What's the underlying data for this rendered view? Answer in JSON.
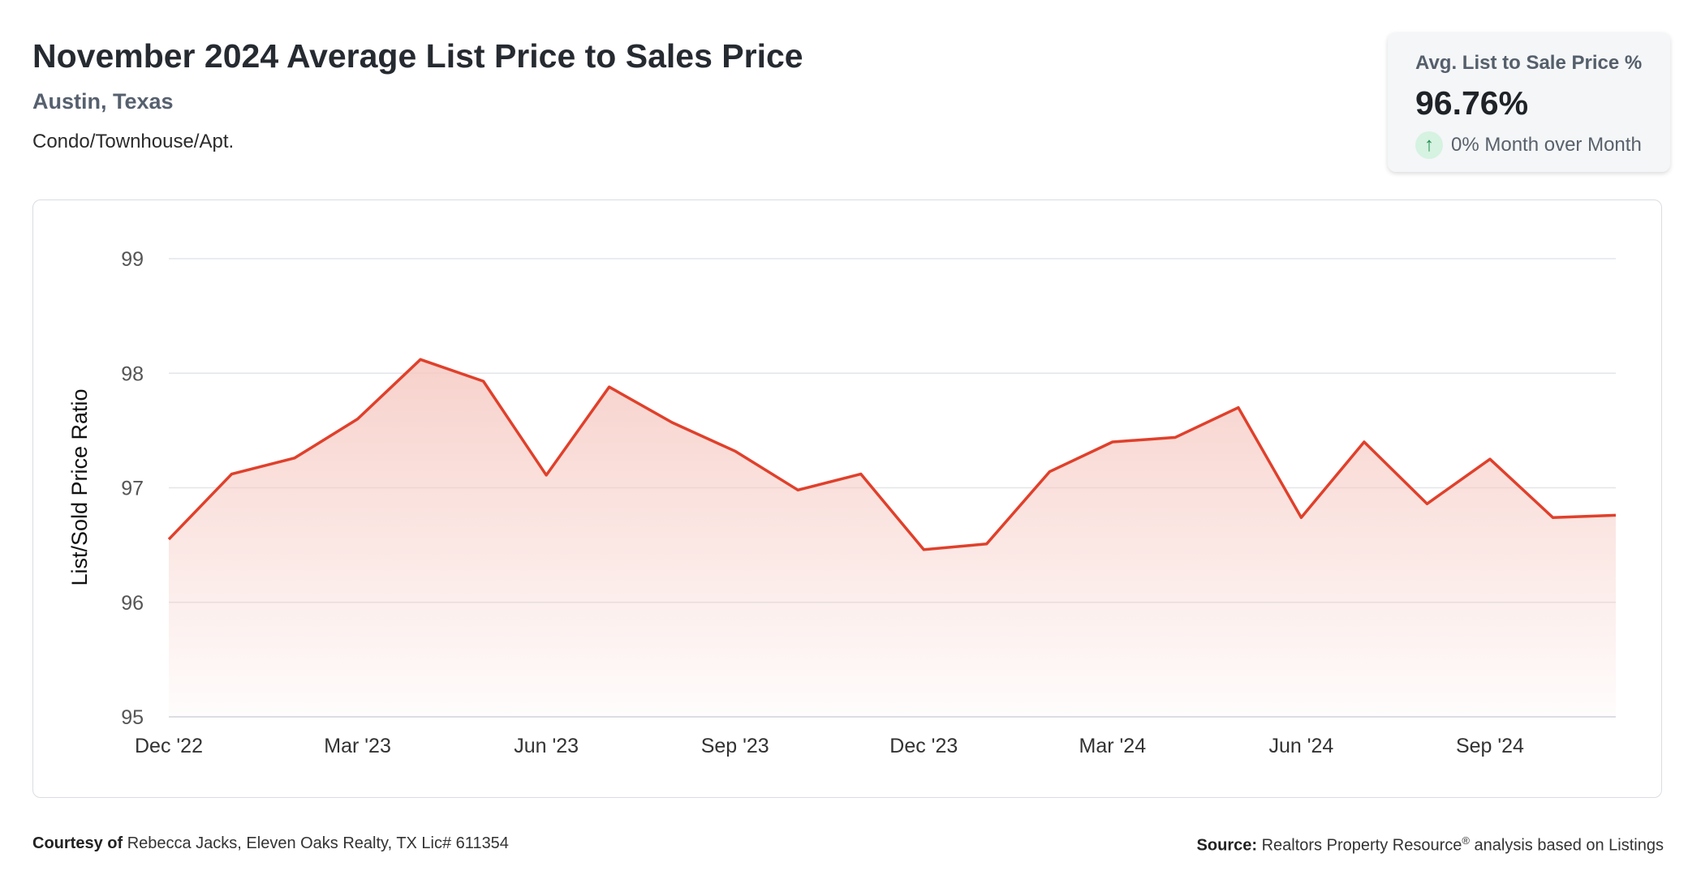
{
  "header": {
    "title": "November 2024 Average List Price to Sales Price",
    "location": "Austin, Texas",
    "property_type": "Condo/Townhouse/Apt."
  },
  "kpi": {
    "label": "Avg. List to Sale Price %",
    "value": "96.76%",
    "change": "0% Month over Month",
    "change_icon": "arrow-up-icon"
  },
  "footer": {
    "courtesy_label": "Courtesy of",
    "courtesy_text": "Rebecca Jacks, Eleven Oaks Realty, TX Lic# 611354",
    "source_label": "Source:",
    "source_text_before": "Realtors Property Resource",
    "source_sup": "®",
    "source_text_after": " analysis based on Listings"
  },
  "colors": {
    "line": "#e0402b",
    "fill_top": "#f6c9c2",
    "grid": "#e3e5e8",
    "accent_up": "#1f8f4e"
  },
  "chart_data": {
    "type": "area",
    "ylabel": "List/Sold Price Ratio",
    "xlabel": "",
    "ylim": [
      95,
      99
    ],
    "yticks": [
      95,
      96,
      97,
      98,
      99
    ],
    "grid": true,
    "x": [
      "Dec '22",
      "Jan '23",
      "Feb '23",
      "Mar '23",
      "Apr '23",
      "May '23",
      "Jun '23",
      "Jul '23",
      "Aug '23",
      "Sep '23",
      "Oct '23",
      "Nov '23",
      "Dec '23",
      "Jan '24",
      "Feb '24",
      "Mar '24",
      "Apr '24",
      "May '24",
      "Jun '24",
      "Jul '24",
      "Aug '24",
      "Sep '24",
      "Oct '24",
      "Nov '24"
    ],
    "xtick_labels": [
      "Dec '22",
      "Mar '23",
      "Jun '23",
      "Sep '23",
      "Dec '23",
      "Mar '24",
      "Jun '24",
      "Sep '24"
    ],
    "xtick_indices": [
      0,
      3,
      6,
      9,
      12,
      15,
      18,
      21
    ],
    "series": [
      {
        "values": [
          96.55,
          97.12,
          97.26,
          97.6,
          98.12,
          97.93,
          97.11,
          97.88,
          97.57,
          97.32,
          96.98,
          97.12,
          96.46,
          96.51,
          97.14,
          97.4,
          97.44,
          97.7,
          96.74,
          97.4,
          96.86,
          97.25,
          96.74,
          96.76
        ]
      }
    ]
  }
}
